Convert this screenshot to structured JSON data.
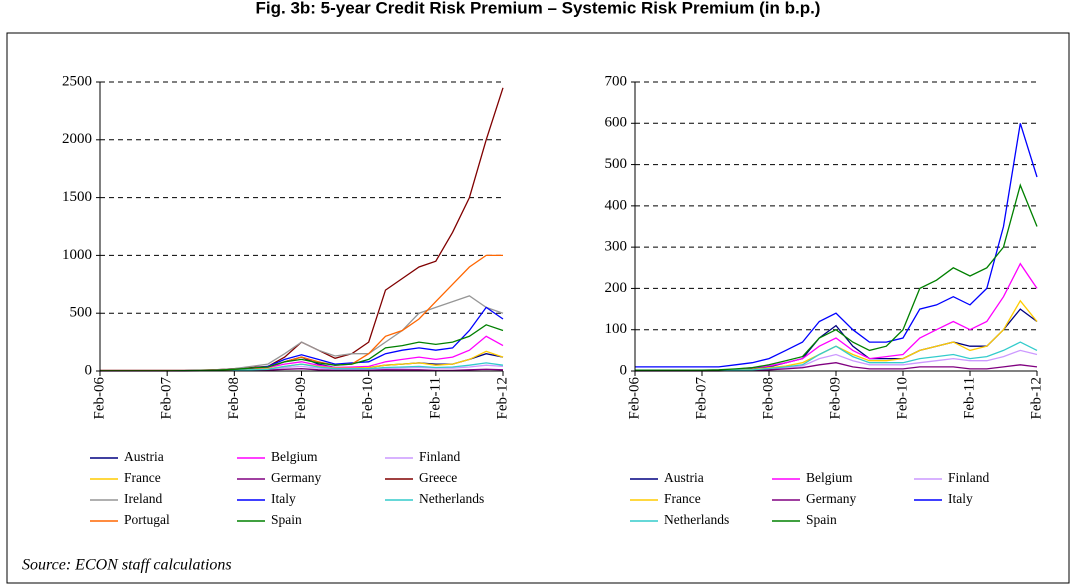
{
  "title": "Fig. 3b: 5-year Credit Risk Premium – Systemic Risk Premium  (in b.p.)",
  "source": "Source: ECON staff calculations",
  "chart_data": [
    {
      "type": "line",
      "categories": [
        "Feb-06",
        null,
        null,
        null,
        "Feb-07",
        null,
        null,
        null,
        "Feb-08",
        null,
        null,
        null,
        "Feb-09",
        null,
        null,
        null,
        "Feb-10",
        null,
        null,
        null,
        "Feb-11",
        null,
        null,
        null,
        "Feb-12"
      ],
      "ylim": [
        0,
        2500
      ],
      "yticks": [
        0,
        500,
        1000,
        1500,
        2000,
        2500
      ],
      "grid": true,
      "series": [
        {
          "name": "Austria",
          "color": "#000080",
          "values": [
            2,
            2,
            2,
            2,
            2,
            2,
            3,
            5,
            10,
            20,
            30,
            80,
            120,
            60,
            30,
            30,
            30,
            50,
            60,
            70,
            60,
            60,
            100,
            150,
            120
          ]
        },
        {
          "name": "Belgium",
          "color": "#FF00FF",
          "values": [
            2,
            2,
            2,
            2,
            2,
            2,
            4,
            8,
            12,
            20,
            30,
            60,
            80,
            50,
            30,
            35,
            40,
            80,
            100,
            120,
            100,
            120,
            180,
            300,
            220
          ]
        },
        {
          "name": "Finland",
          "color": "#CC99FF",
          "values": [
            1,
            1,
            1,
            1,
            1,
            1,
            2,
            3,
            5,
            8,
            12,
            30,
            40,
            25,
            15,
            15,
            15,
            20,
            25,
            30,
            25,
            25,
            35,
            50,
            40
          ]
        },
        {
          "name": "France",
          "color": "#FFCC00",
          "values": [
            1,
            1,
            1,
            1,
            1,
            1,
            2,
            4,
            8,
            12,
            20,
            40,
            60,
            40,
            25,
            25,
            30,
            50,
            60,
            70,
            50,
            60,
            100,
            170,
            120
          ]
        },
        {
          "name": "Germany",
          "color": "#800080",
          "values": [
            0,
            0,
            0,
            0,
            0,
            0,
            1,
            2,
            3,
            5,
            8,
            15,
            20,
            10,
            5,
            5,
            5,
            10,
            10,
            10,
            5,
            5,
            10,
            15,
            10
          ]
        },
        {
          "name": "Greece",
          "color": "#800000",
          "values": [
            5,
            5,
            5,
            5,
            5,
            5,
            8,
            12,
            20,
            30,
            40,
            120,
            250,
            180,
            110,
            150,
            250,
            700,
            800,
            900,
            950,
            1200,
            1500,
            2000,
            2450
          ]
        },
        {
          "name": "Ireland",
          "color": "#969696",
          "values": [
            2,
            2,
            2,
            2,
            2,
            3,
            5,
            10,
            20,
            40,
            60,
            150,
            250,
            180,
            130,
            150,
            150,
            250,
            350,
            500,
            550,
            600,
            650,
            550,
            500
          ]
        },
        {
          "name": "Italy",
          "color": "#0000FF",
          "values": [
            3,
            3,
            3,
            3,
            3,
            3,
            5,
            8,
            15,
            25,
            40,
            100,
            140,
            100,
            60,
            70,
            80,
            150,
            180,
            200,
            180,
            200,
            350,
            550,
            450
          ]
        },
        {
          "name": "Netherlands",
          "color": "#33CCCC",
          "values": [
            1,
            1,
            1,
            1,
            1,
            1,
            2,
            3,
            6,
            10,
            15,
            40,
            60,
            35,
            20,
            20,
            20,
            30,
            35,
            40,
            30,
            35,
            50,
            70,
            50
          ]
        },
        {
          "name": "Portugal",
          "color": "#FF6600",
          "values": [
            3,
            3,
            3,
            3,
            3,
            3,
            5,
            8,
            15,
            25,
            35,
            80,
            120,
            80,
            50,
            60,
            150,
            300,
            350,
            450,
            600,
            750,
            900,
            1000,
            1000
          ]
        },
        {
          "name": "Spain",
          "color": "#008000",
          "values": [
            2,
            2,
            2,
            2,
            2,
            3,
            5,
            8,
            15,
            25,
            35,
            80,
            100,
            70,
            50,
            60,
            100,
            200,
            220,
            250,
            230,
            250,
            300,
            400,
            350
          ]
        }
      ]
    },
    {
      "type": "line",
      "categories": [
        "Feb-06",
        null,
        null,
        null,
        "Feb-07",
        null,
        null,
        null,
        "Feb-08",
        null,
        null,
        null,
        "Feb-09",
        null,
        null,
        null,
        "Feb-10",
        null,
        null,
        null,
        "Feb-11",
        null,
        null,
        null,
        "Feb-12"
      ],
      "ylim": [
        0,
        700
      ],
      "yticks": [
        0,
        100,
        200,
        300,
        400,
        500,
        600,
        700
      ],
      "grid": true,
      "series": [
        {
          "name": "Austria",
          "color": "#000080",
          "values": [
            2,
            2,
            2,
            2,
            2,
            2,
            3,
            5,
            10,
            20,
            30,
            80,
            110,
            60,
            30,
            30,
            30,
            50,
            60,
            70,
            60,
            60,
            100,
            150,
            120
          ]
        },
        {
          "name": "Belgium",
          "color": "#FF00FF",
          "values": [
            2,
            2,
            2,
            2,
            2,
            2,
            4,
            8,
            12,
            20,
            30,
            60,
            80,
            50,
            30,
            35,
            40,
            80,
            100,
            120,
            100,
            120,
            180,
            260,
            200
          ]
        },
        {
          "name": "Finland",
          "color": "#CC99FF",
          "values": [
            1,
            1,
            1,
            1,
            1,
            1,
            2,
            3,
            5,
            8,
            12,
            30,
            40,
            25,
            15,
            15,
            15,
            20,
            25,
            30,
            25,
            25,
            35,
            50,
            40
          ]
        },
        {
          "name": "France",
          "color": "#FFCC00",
          "values": [
            1,
            1,
            1,
            1,
            1,
            1,
            2,
            4,
            8,
            12,
            20,
            40,
            60,
            40,
            25,
            25,
            30,
            50,
            60,
            70,
            50,
            60,
            100,
            170,
            120
          ]
        },
        {
          "name": "Germany",
          "color": "#800080",
          "values": [
            0,
            0,
            0,
            0,
            0,
            0,
            1,
            2,
            3,
            5,
            8,
            15,
            20,
            10,
            5,
            5,
            5,
            10,
            10,
            10,
            5,
            5,
            10,
            15,
            10
          ]
        },
        {
          "name": "Italy",
          "color": "#0000FF",
          "values": [
            10,
            10,
            10,
            10,
            10,
            10,
            15,
            20,
            30,
            50,
            70,
            120,
            140,
            100,
            70,
            70,
            80,
            150,
            160,
            180,
            160,
            200,
            350,
            600,
            470
          ]
        },
        {
          "name": "Netherlands",
          "color": "#33CCCC",
          "values": [
            1,
            1,
            1,
            1,
            1,
            1,
            2,
            3,
            6,
            10,
            15,
            40,
            60,
            35,
            20,
            20,
            20,
            30,
            35,
            40,
            30,
            35,
            50,
            70,
            50
          ]
        },
        {
          "name": "Spain",
          "color": "#008000",
          "values": [
            2,
            2,
            2,
            2,
            2,
            3,
            5,
            8,
            15,
            25,
            35,
            80,
            100,
            70,
            50,
            60,
            100,
            200,
            220,
            250,
            230,
            250,
            300,
            450,
            350
          ]
        }
      ]
    }
  ]
}
